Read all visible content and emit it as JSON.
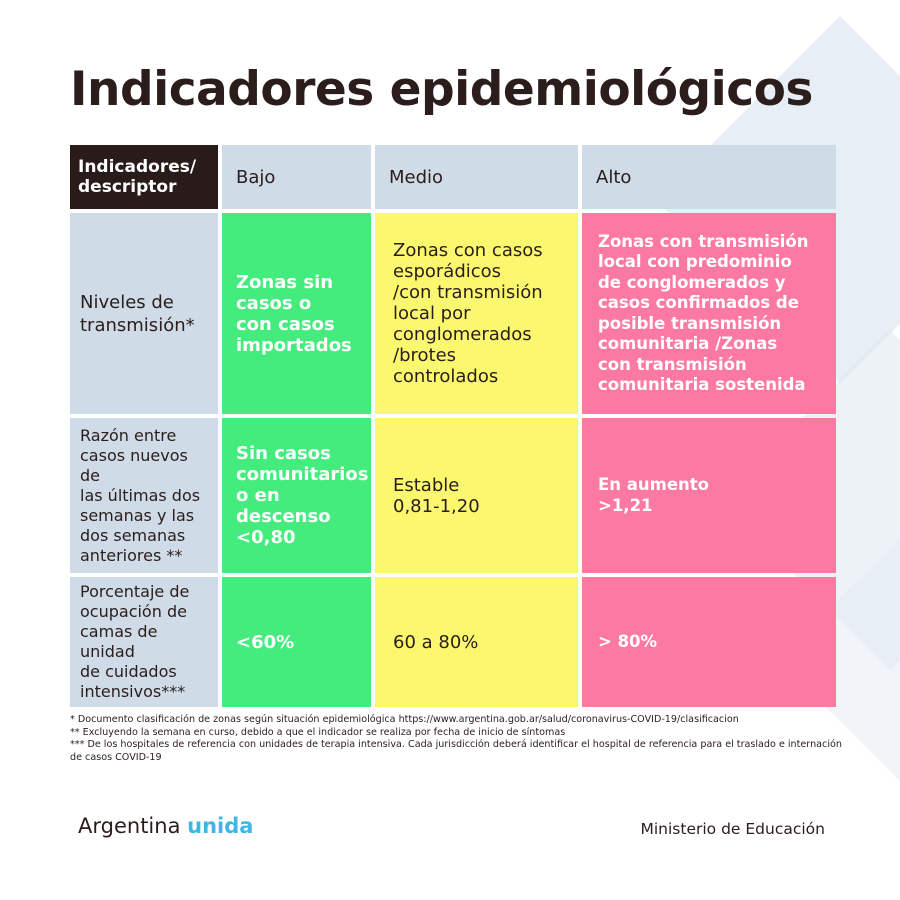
{
  "title": "Indicadores epidemiológicos",
  "table": {
    "header": {
      "descriptor": "Indicadores/\ndescriptor",
      "low": "Bajo",
      "medium": "Medio",
      "high": "Alto"
    },
    "rows": [
      {
        "descriptor": "Niveles de\ntransmisión*",
        "low": "Zonas sin\ncasos o\ncon casos\nimportados",
        "medium": "Zonas con casos\nesporádicos\n/con transmisión\nlocal por\nconglomerados\n/brotes\ncontrolados",
        "high": "Zonas con transmisión\nlocal con predominio\nde conglomerados y\ncasos confirmados de\nposible transmisión\ncomunitaria /Zonas\ncon transmisión\ncomunitaria sostenida"
      },
      {
        "descriptor": "Razón entre\ncasos nuevos de\nlas últimas dos\nsemanas y las\ndos semanas\nanteriores **",
        "low": "Sin casos\ncomunitarios\no en\ndescenso\n<0,80",
        "medium": "Estable\n0,81-1,20",
        "high": "En aumento\n>1,21"
      },
      {
        "descriptor": "Porcentaje de\nocupación de\ncamas de unidad\nde cuidados\nintensivos***",
        "low": "<60%",
        "medium": "60 a 80%",
        "high": "> 80%"
      }
    ]
  },
  "footnotes": [
    "* Documento clasificación de zonas según situación epidemiológica https://www.argentina.gob.ar/salud/coronavirus-COVID-19/clasificacion",
    "** Excluyendo la semana en curso, debido a que el indicador se realiza por fecha de inicio de síntomas",
    "*** De los hospitales de referencia con unidades de terapia intensiva. Cada jurisdicción deberá identificar el hospital de referencia para el traslado e internación de casos COVID-19"
  ],
  "brand": {
    "word1": "Argentina",
    "word2": "unida"
  },
  "ministry": "Ministerio de Educación",
  "colors": {
    "dark": "#2a1b1b",
    "header_blue": "#cfdbe6",
    "low_green": "#44ec7e",
    "medium_yellow": "#fbf870",
    "high_pink": "#fc7aa2",
    "brand_accent": "#3fb7e6"
  }
}
